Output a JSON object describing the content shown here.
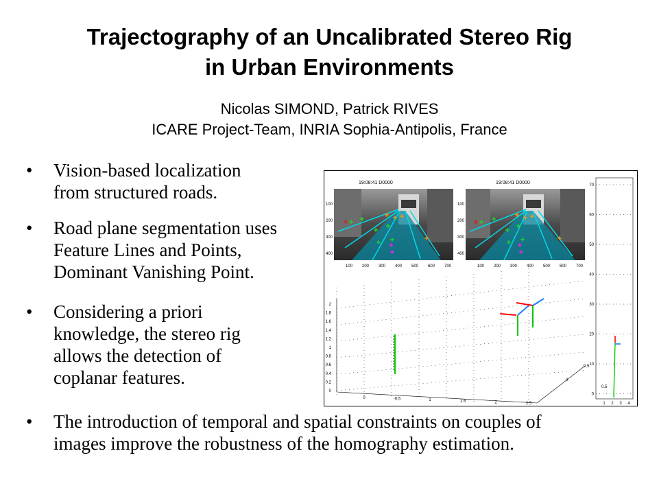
{
  "slide": {
    "title_line1": "Trajectography of an Uncalibrated Stereo Rig",
    "title_line2": "in Urban Environments",
    "authors_line1": "Nicolas SIMOND, Patrick RIVES",
    "authors_line2": "ICARE Project-Team, INRIA Sophia-Antipolis, France"
  },
  "bullets": [
    {
      "lines": [
        "Vision-based localization",
        "from structured roads."
      ]
    },
    {
      "lines": [
        "Road plane segmentation uses",
        "Feature Lines and Points,",
        "Dominant Vanishing Point."
      ]
    },
    {
      "lines": [
        "Considering a priori",
        "knowledge, the stereo rig",
        "allows the detection of",
        "coplanar features."
      ]
    },
    {
      "lines": [
        "The introduction of temporal and spatial constraints on couples of",
        "images improve the robustness of the homography estimation."
      ]
    }
  ],
  "figure": {
    "left_image_caption": "19:08:41 D0000",
    "right_image_caption": "19:08:41 D0000",
    "image_x_ticks": [
      "100",
      "200",
      "300",
      "400",
      "500",
      "600",
      "700"
    ],
    "image_y_ticks": [
      "100",
      "200",
      "300",
      "400"
    ],
    "plot3d_z_ticks": [
      "2",
      "1.8",
      "1.6",
      "1.4",
      "1.2",
      "1",
      "0.8",
      "0.6",
      "0.4",
      "0.2",
      "0"
    ],
    "plot3d_x_ticks": [
      "0",
      "-0.5",
      "1",
      "1.5",
      "2",
      "2.5"
    ],
    "plot3d_y_ticks": [
      "0",
      "0.5",
      "0.5"
    ],
    "side_y_ticks": [
      "70",
      "60",
      "50",
      "40",
      "30",
      "20",
      "10",
      "0"
    ],
    "side_x_ticks": [
      "1",
      "2",
      "3",
      "4"
    ],
    "colors": {
      "feature_line": "#00d8e8",
      "point_green": "#22dd22",
      "point_orange": "#ff9900",
      "point_magenta": "#ee22ee",
      "point_red": "#ee1111",
      "axis_red": "#ff0000",
      "axis_green": "#00cc00",
      "axis_blue": "#1a7fff"
    }
  }
}
